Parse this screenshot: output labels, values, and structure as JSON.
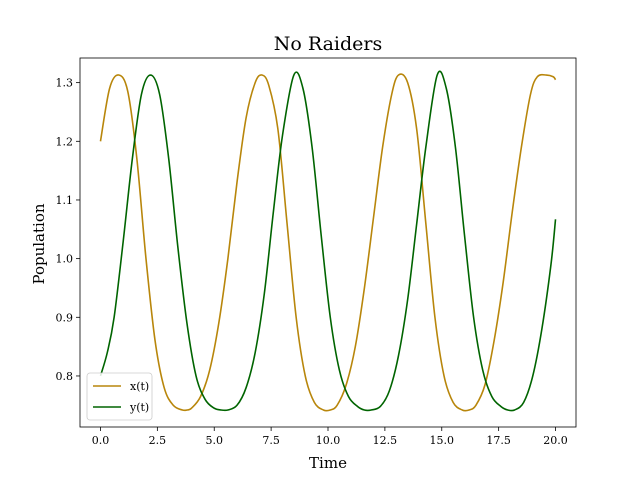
{
  "chart_data": {
    "type": "line",
    "title": "No Raiders",
    "xlabel": "Time",
    "ylabel": "Population",
    "xlim": [
      -0.9,
      20.9
    ],
    "ylim": [
      0.713,
      1.342
    ],
    "xticks": [
      0.0,
      2.5,
      5.0,
      7.5,
      10.0,
      12.5,
      15.0,
      17.5,
      20.0
    ],
    "xtick_labels": [
      "0.0",
      "2.5",
      "5.0",
      "7.5",
      "10.0",
      "12.5",
      "15.0",
      "17.5",
      "20.0"
    ],
    "yticks": [
      0.8,
      0.9,
      1.0,
      1.1,
      1.2,
      1.3
    ],
    "ytick_labels": [
      "0.8",
      "0.9",
      "1.0",
      "1.1",
      "1.2",
      "1.3"
    ],
    "grid": false,
    "legend_position": "lower-left",
    "series": [
      {
        "name": "x(t)",
        "color": "#b8860b",
        "x": [
          0.0,
          0.4,
          0.8,
          1.2,
          1.6,
          2.0,
          2.4,
          2.8,
          3.2,
          3.6,
          3.8,
          4.0,
          4.4,
          4.8,
          5.2,
          5.6,
          6.0,
          6.4,
          6.8,
          7.1,
          7.4,
          7.8,
          8.2,
          8.6,
          9.0,
          9.4,
          9.8,
          10.1,
          10.4,
          10.8,
          11.2,
          11.6,
          12.0,
          12.4,
          12.8,
          13.1,
          13.5,
          13.9,
          14.3,
          14.7,
          15.1,
          15.5,
          15.9,
          16.2,
          16.5,
          16.9,
          17.3,
          17.7,
          18.1,
          18.5,
          18.9,
          19.2,
          19.6,
          19.9,
          20.0
        ],
        "y": [
          1.2,
          1.29,
          1.313,
          1.285,
          1.17,
          1.0,
          0.86,
          0.78,
          0.75,
          0.742,
          0.742,
          0.745,
          0.765,
          0.81,
          0.89,
          1.0,
          1.13,
          1.24,
          1.3,
          1.313,
          1.295,
          1.22,
          1.06,
          0.9,
          0.8,
          0.755,
          0.742,
          0.742,
          0.75,
          0.785,
          0.85,
          0.95,
          1.07,
          1.19,
          1.28,
          1.313,
          1.3,
          1.22,
          1.06,
          0.9,
          0.8,
          0.755,
          0.742,
          0.742,
          0.75,
          0.785,
          0.86,
          0.96,
          1.08,
          1.19,
          1.28,
          1.31,
          1.313,
          1.31,
          1.305
        ]
      },
      {
        "name": "y(t)",
        "color": "#006400",
        "x": [
          0.0,
          0.3,
          0.6,
          1.0,
          1.4,
          1.8,
          2.2,
          2.6,
          3.0,
          3.4,
          3.8,
          4.2,
          4.6,
          5.0,
          5.3,
          5.6,
          6.0,
          6.4,
          6.8,
          7.2,
          7.6,
          8.0,
          8.5,
          8.9,
          9.3,
          9.7,
          10.1,
          10.5,
          10.9,
          11.3,
          11.6,
          11.9,
          12.3,
          12.7,
          13.1,
          13.5,
          13.9,
          14.3,
          14.8,
          15.2,
          15.6,
          16.0,
          16.4,
          16.8,
          17.2,
          17.6,
          17.9,
          18.2,
          18.6,
          19.0,
          19.4,
          19.8,
          20.0
        ],
        "y": [
          0.8,
          0.84,
          0.9,
          1.03,
          1.17,
          1.28,
          1.313,
          1.28,
          1.17,
          1.02,
          0.89,
          0.8,
          0.76,
          0.745,
          0.742,
          0.742,
          0.75,
          0.78,
          0.84,
          0.94,
          1.08,
          1.21,
          1.313,
          1.29,
          1.19,
          1.04,
          0.9,
          0.81,
          0.765,
          0.748,
          0.742,
          0.742,
          0.748,
          0.775,
          0.835,
          0.93,
          1.06,
          1.19,
          1.313,
          1.29,
          1.19,
          1.04,
          0.9,
          0.81,
          0.765,
          0.748,
          0.742,
          0.742,
          0.755,
          0.8,
          0.88,
          0.99,
          1.067
        ]
      }
    ]
  }
}
